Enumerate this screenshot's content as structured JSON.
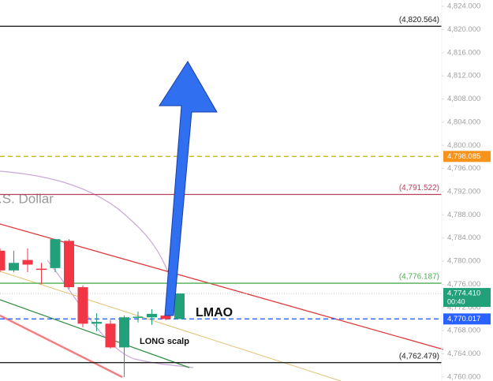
{
  "chart_data": {
    "type": "candlestick",
    "watermark": ".S. Dollar",
    "ylim": [
      4759.3,
      4825.1
    ],
    "yticks": [
      {
        "value": 4760,
        "label": "4,760.000"
      },
      {
        "value": 4764,
        "label": "4,764.000"
      },
      {
        "value": 4768,
        "label": "4,768.000"
      },
      {
        "value": 4772,
        "label": "4,772.000"
      },
      {
        "value": 4776,
        "label": "4,776.000"
      },
      {
        "value": 4780,
        "label": "4,780.000"
      },
      {
        "value": 4784,
        "label": "4,784.000"
      },
      {
        "value": 4788,
        "label": "4,788.000"
      },
      {
        "value": 4792,
        "label": "4,792.000"
      },
      {
        "value": 4796,
        "label": "4,796.000"
      },
      {
        "value": 4800,
        "label": "4,800.000"
      },
      {
        "value": 4804,
        "label": "4,804.000"
      },
      {
        "value": 4808,
        "label": "4,808.000"
      },
      {
        "value": 4812,
        "label": "4,812.000"
      },
      {
        "value": 4816,
        "label": "4,816.000"
      },
      {
        "value": 4820,
        "label": "4,820.000"
      },
      {
        "value": 4824,
        "label": "4,824.000"
      }
    ],
    "up_color": "#22a07a",
    "down_color": "#f23645",
    "candles": [
      {
        "open": 4781.8,
        "high": 4782.2,
        "low": 4778.1,
        "close": 4778.4
      },
      {
        "open": 4778.4,
        "high": 4781.8,
        "low": 4778.1,
        "close": 4779.7
      },
      {
        "open": 4780.2,
        "high": 4782.2,
        "low": 4778.1,
        "close": 4779.4
      },
      {
        "open": 4778.7,
        "high": 4779.7,
        "low": 4776.0,
        "close": 4778.6
      },
      {
        "open": 4778.8,
        "high": 4783.8,
        "low": 4778.1,
        "close": 4783.8
      },
      {
        "open": 4783.5,
        "high": 4783.8,
        "low": 4775.2,
        "close": 4775.5
      },
      {
        "open": 4775.5,
        "high": 4775.8,
        "low": 4768.6,
        "close": 4769.2
      },
      {
        "open": 4769.2,
        "high": 4771.0,
        "low": 4767.9,
        "close": 4769.5
      },
      {
        "open": 4769.2,
        "high": 4769.9,
        "low": 4764.9,
        "close": 4765.1
      },
      {
        "open": 4765.1,
        "high": 4770.6,
        "low": 4760.0,
        "close": 4770.3
      },
      {
        "open": 4770.3,
        "high": 4771.3,
        "low": 4769.4,
        "close": 4770.4
      },
      {
        "open": 4770.3,
        "high": 4771.7,
        "low": 4769.0,
        "close": 4770.9
      },
      {
        "open": 4770.6,
        "high": 4771.7,
        "low": 4769.8,
        "close": 4770.0
      },
      {
        "open": 4770.0,
        "high": 4774.3,
        "low": 4770.0,
        "close": 4774.41
      }
    ],
    "levels": [
      {
        "value": 4820.564,
        "label": "(4,820.564)",
        "color": "#222222",
        "dash": false
      },
      {
        "value": 4798.085,
        "tag": "4,798.085",
        "color": "#c8b820",
        "tag_color": "#f7931a",
        "dash": true
      },
      {
        "value": 4791.522,
        "label": "(4,791.522)",
        "color": "#b8405a",
        "dash": false
      },
      {
        "value": 4776.187,
        "label": "(4,776.187)",
        "color": "#4caf50",
        "dash": false
      },
      {
        "value": 4770.017,
        "tag": "4,770.017",
        "color": "#2962ff",
        "tag_color": "#2962ff",
        "dash": true
      },
      {
        "value": 4762.479,
        "label": "(4,762.479)",
        "color": "#222222",
        "dash": false
      }
    ],
    "last_price": {
      "value": 4774.41,
      "label": "4,774.410",
      "countdown": "00:40"
    },
    "annotations": [
      "LMAO",
      "LONG scalp"
    ]
  }
}
